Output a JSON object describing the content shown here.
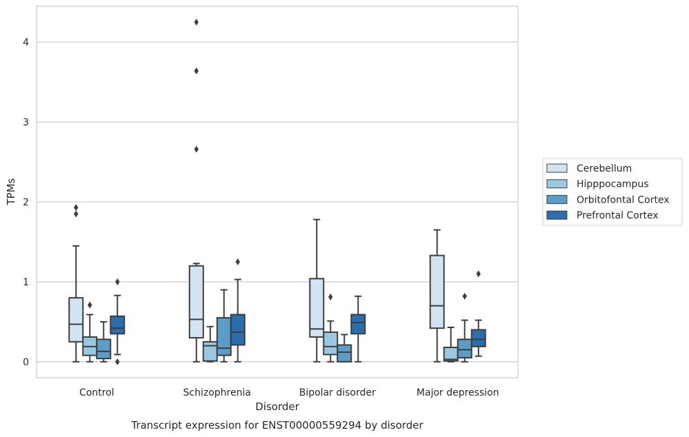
{
  "chart_data": {
    "type": "boxplot",
    "title": "Transcript expression for ENST00000559294 by disorder",
    "xlabel": "Disorder",
    "ylabel": "TPMs",
    "ylim": [
      -0.2,
      4.45
    ],
    "yticks": [
      0,
      1,
      2,
      3,
      4
    ],
    "grid": "horizontal",
    "legend_position": "right",
    "categories": [
      "Control",
      "Schizophrenia",
      "Bipolar disorder",
      "Major depression"
    ],
    "series": [
      {
        "name": "Cerebellum",
        "color": "#d2e3f2",
        "boxes": [
          {
            "whisker_low": 0.0,
            "q1": 0.25,
            "median": 0.47,
            "q3": 0.8,
            "whisker_high": 1.45,
            "outliers": [
              1.85,
              1.93
            ]
          },
          {
            "whisker_low": 0.0,
            "q1": 0.3,
            "median": 0.53,
            "q3": 1.2,
            "whisker_high": 1.23,
            "outliers": [
              2.66,
              3.64,
              4.25
            ]
          },
          {
            "whisker_low": 0.0,
            "q1": 0.31,
            "median": 0.41,
            "q3": 1.04,
            "whisker_high": 1.78,
            "outliers": []
          },
          {
            "whisker_low": 0.0,
            "q1": 0.42,
            "median": 0.7,
            "q3": 1.33,
            "whisker_high": 1.65,
            "outliers": []
          }
        ]
      },
      {
        "name": "Hipppocampus",
        "color": "#9ac8e0",
        "boxes": [
          {
            "whisker_low": 0.0,
            "q1": 0.08,
            "median": 0.19,
            "q3": 0.31,
            "whisker_high": 0.59,
            "outliers": [
              0.71
            ]
          },
          {
            "whisker_low": 0.0,
            "q1": 0.01,
            "median": 0.2,
            "q3": 0.25,
            "whisker_high": 0.44,
            "outliers": []
          },
          {
            "whisker_low": 0.0,
            "q1": 0.09,
            "median": 0.19,
            "q3": 0.37,
            "whisker_high": 0.51,
            "outliers": [
              0.81
            ]
          },
          {
            "whisker_low": 0.0,
            "q1": 0.01,
            "median": 0.03,
            "q3": 0.18,
            "whisker_high": 0.43,
            "outliers": []
          }
        ]
      },
      {
        "name": "Orbitofontal Cortex",
        "color": "#5b9cc9",
        "boxes": [
          {
            "whisker_low": 0.0,
            "q1": 0.04,
            "median": 0.13,
            "q3": 0.28,
            "whisker_high": 0.5,
            "outliers": []
          },
          {
            "whisker_low": 0.0,
            "q1": 0.08,
            "median": 0.17,
            "q3": 0.55,
            "whisker_high": 0.9,
            "outliers": []
          },
          {
            "whisker_low": 0.0,
            "q1": 0.0,
            "median": 0.12,
            "q3": 0.21,
            "whisker_high": 0.34,
            "outliers": []
          },
          {
            "whisker_low": 0.0,
            "q1": 0.05,
            "median": 0.15,
            "q3": 0.28,
            "whisker_high": 0.52,
            "outliers": [
              0.82
            ]
          }
        ]
      },
      {
        "name": "Prefrontal Cortex",
        "color": "#2c6eac",
        "boxes": [
          {
            "whisker_low": 0.09,
            "q1": 0.35,
            "median": 0.42,
            "q3": 0.57,
            "whisker_high": 0.83,
            "outliers": [
              0.0,
              1.0
            ]
          },
          {
            "whisker_low": 0.0,
            "q1": 0.21,
            "median": 0.37,
            "q3": 0.59,
            "whisker_high": 1.03,
            "outliers": [
              1.25
            ]
          },
          {
            "whisker_low": 0.0,
            "q1": 0.35,
            "median": 0.49,
            "q3": 0.59,
            "whisker_high": 0.82,
            "outliers": []
          },
          {
            "whisker_low": 0.07,
            "q1": 0.19,
            "median": 0.28,
            "q3": 0.4,
            "whisker_high": 0.52,
            "outliers": [
              1.1
            ]
          }
        ]
      }
    ]
  }
}
